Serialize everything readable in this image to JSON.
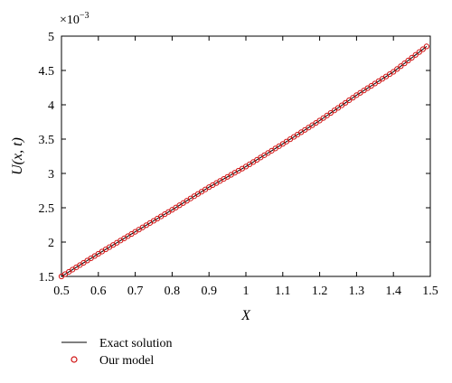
{
  "chart_data": {
    "type": "line",
    "xlabel": "X",
    "ylabel": "U(x, t)",
    "y_multiplier": "×10",
    "y_exponent": "−3",
    "xlim": [
      0.5,
      1.5
    ],
    "ylim": [
      1.5,
      5.0
    ],
    "x_ticks": [
      "0.5",
      "0.6",
      "0.7",
      "0.8",
      "0.9",
      "1",
      "1.1",
      "1.2",
      "1.3",
      "1.4",
      "1.5"
    ],
    "y_ticks": [
      "1.5",
      "2",
      "2.5",
      "3",
      "3.5",
      "4",
      "4.5",
      "5"
    ],
    "grid": false,
    "legend_position": "bottom-left, below plot",
    "series": [
      {
        "name": "Exact solution",
        "style": "line",
        "color": "#000000",
        "x": [
          0.5,
          0.6,
          0.7,
          0.8,
          0.9,
          1.0,
          1.1,
          1.2,
          1.3,
          1.4,
          1.49
        ],
        "y": [
          1.5,
          1.83,
          2.15,
          2.47,
          2.8,
          3.1,
          3.43,
          3.77,
          4.14,
          4.48,
          4.85
        ]
      },
      {
        "name": "Our model",
        "style": "marker-circle-open",
        "color": "#d01010",
        "x_start": 0.5,
        "x_end": 1.49,
        "point_count": 100,
        "y_anchor_x": [
          0.5,
          0.6,
          0.7,
          0.8,
          0.9,
          1.0,
          1.1,
          1.2,
          1.3,
          1.4,
          1.49
        ],
        "y_anchor_values": [
          1.5,
          1.83,
          2.15,
          2.47,
          2.8,
          3.1,
          3.43,
          3.77,
          4.14,
          4.48,
          4.85
        ]
      }
    ]
  }
}
